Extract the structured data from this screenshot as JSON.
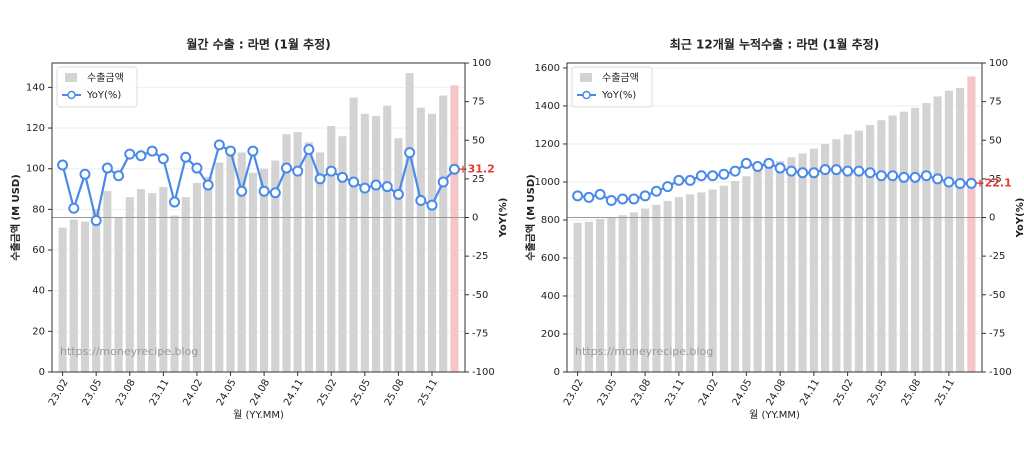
{
  "chart_data": [
    {
      "type": "bar-line",
      "title": "월간 수출 : 라면 (1월 추정)",
      "xlabel": "월 (YY.MM)",
      "ylabel": "수출금액 (M USD)",
      "y2label": "YoY(%)",
      "watermark": "https://moneyrecipe.blog",
      "legend": "upper left",
      "grid": true,
      "categories": [
        "23.02",
        null,
        null,
        "23.05",
        null,
        null,
        "23.08",
        null,
        null,
        "23.11",
        null,
        null,
        "24.02",
        null,
        null,
        "24.05",
        null,
        null,
        "24.08",
        null,
        null,
        "24.11",
        null,
        null,
        "25.02",
        null,
        null,
        "25.05",
        null,
        null,
        "25.08",
        null,
        null,
        "25.11",
        null,
        null
      ],
      "series": [
        {
          "name": "수출금액",
          "type": "bar",
          "color": "#d3d3d3",
          "highlight_color": "#f5c6c6",
          "values": [
            71,
            75,
            74,
            80,
            89,
            76,
            86,
            90,
            88,
            91,
            77,
            86,
            93,
            96,
            103,
            111,
            108,
            98,
            100,
            104,
            117,
            118,
            113,
            108,
            121,
            116,
            135,
            127,
            126,
            131,
            115,
            147,
            130,
            127,
            136,
            141
          ]
        },
        {
          "name": "YoY(%)",
          "type": "line",
          "axis": "y2",
          "color": "#4a8ae8",
          "values": [
            34,
            6,
            28,
            -2,
            32,
            27,
            41,
            40,
            43,
            38,
            10,
            39,
            32,
            21,
            47,
            43,
            17,
            43,
            17,
            16,
            32,
            30,
            44,
            25,
            30,
            26,
            23,
            19,
            21,
            20,
            15,
            42,
            11,
            8,
            23,
            31.2
          ],
          "value_labels": [
            null,
            null,
            null,
            null,
            null,
            null,
            null,
            null,
            null,
            null,
            null,
            null,
            null,
            null,
            null,
            null,
            null,
            null,
            null,
            null,
            null,
            null,
            null,
            null,
            null,
            null,
            null,
            null,
            null,
            null,
            null,
            null,
            null,
            null,
            null,
            "+31.2"
          ]
        }
      ],
      "ylim": [
        0,
        152
      ],
      "yticks": [
        0,
        20,
        40,
        60,
        80,
        100,
        120,
        140
      ],
      "y2lim": [
        -100,
        100
      ],
      "y2ticks": [
        -100,
        -75,
        -50,
        -25,
        0,
        25,
        50,
        75,
        100
      ]
    },
    {
      "type": "bar-line",
      "title": "최근 12개월 누적수출 : 라면 (1월 추정)",
      "xlabel": "월 (YY.MM)",
      "ylabel": "수출금액 (M USD)",
      "y2label": "YoY(%)",
      "watermark": "https://moneyrecipe.blog",
      "legend": "upper left",
      "grid": true,
      "categories": [
        "23.02",
        null,
        null,
        "23.05",
        null,
        null,
        "23.08",
        null,
        null,
        "23.11",
        null,
        null,
        "24.02",
        null,
        null,
        "24.05",
        null,
        null,
        "24.08",
        null,
        null,
        "24.11",
        null,
        null,
        "25.02",
        null,
        null,
        "25.05",
        null,
        null,
        "25.08",
        null,
        null,
        "25.11",
        null,
        null
      ],
      "series": [
        {
          "name": "수출금액",
          "type": "bar",
          "color": "#d3d3d3",
          "highlight_color": "#f5c6c6",
          "values": [
            785,
            790,
            805,
            815,
            825,
            840,
            860,
            880,
            900,
            920,
            935,
            945,
            960,
            980,
            1005,
            1030,
            1060,
            1085,
            1110,
            1130,
            1150,
            1175,
            1200,
            1225,
            1250,
            1270,
            1300,
            1325,
            1350,
            1370,
            1390,
            1415,
            1450,
            1480,
            1495,
            1555
          ]
        },
        {
          "name": "YoY(%)",
          "type": "line",
          "axis": "y2",
          "color": "#4a8ae8",
          "values": [
            14,
            13,
            15,
            11,
            12,
            12,
            14,
            17,
            20,
            24,
            24,
            27,
            27,
            28,
            30,
            35,
            33,
            35,
            32,
            30,
            29,
            29,
            31,
            31,
            30,
            30,
            29,
            27,
            27,
            26,
            26,
            27,
            25,
            23,
            22,
            22.1
          ],
          "value_labels": [
            null,
            null,
            null,
            null,
            null,
            null,
            null,
            null,
            null,
            null,
            null,
            null,
            null,
            null,
            null,
            null,
            null,
            null,
            null,
            null,
            null,
            null,
            null,
            null,
            null,
            null,
            null,
            null,
            null,
            null,
            null,
            null,
            null,
            null,
            null,
            "+22.1"
          ]
        }
      ],
      "ylim": [
        0,
        1626
      ],
      "yticks": [
        0,
        200,
        400,
        600,
        800,
        1000,
        1200,
        1400,
        1600
      ],
      "y2lim": [
        -100,
        100
      ],
      "y2ticks": [
        -100,
        -75,
        -50,
        -25,
        0,
        25,
        50,
        75,
        100
      ]
    }
  ]
}
